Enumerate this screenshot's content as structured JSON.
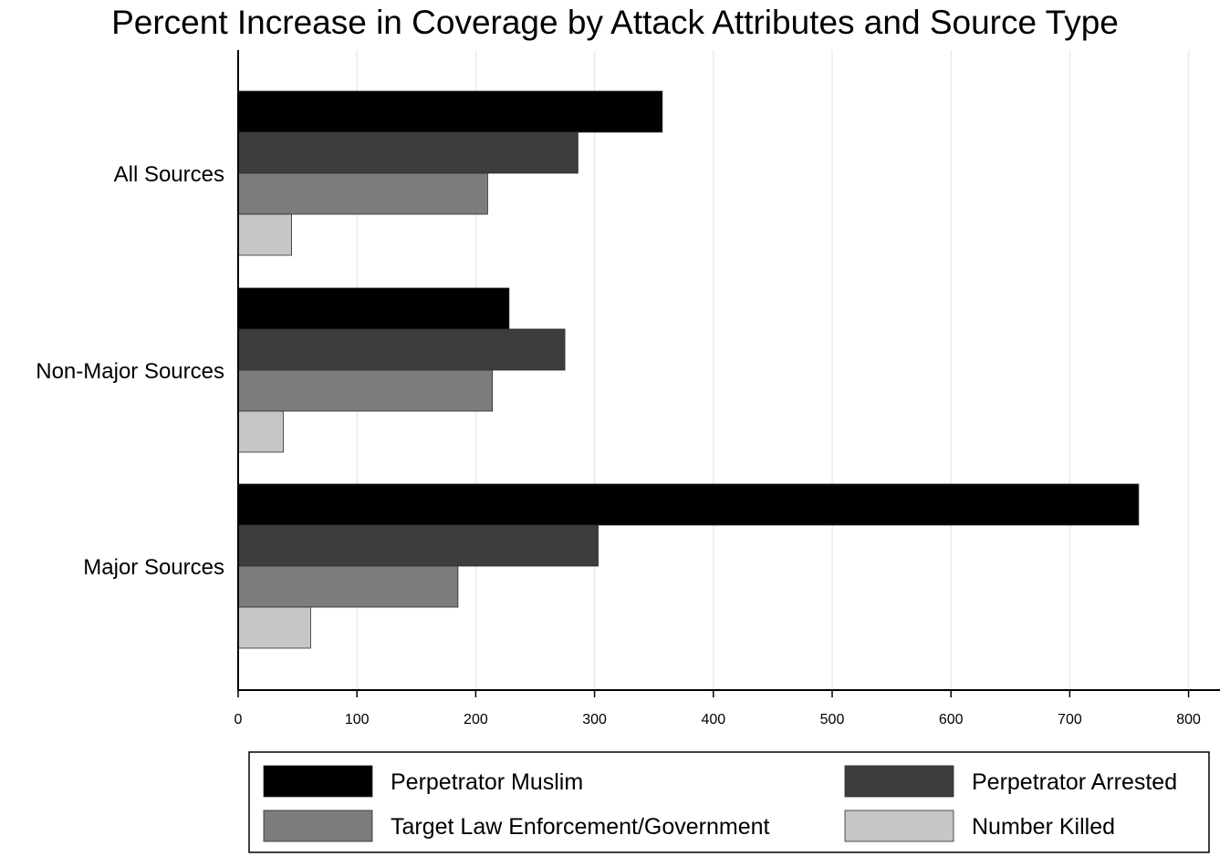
{
  "chart_data": {
    "type": "bar",
    "orientation": "horizontal",
    "title": "Percent Increase in Coverage by Attack Attributes and Source Type",
    "categories": [
      "All Sources",
      "Non-Major Sources",
      "Major Sources"
    ],
    "series": [
      {
        "name": "Perpetrator Muslim",
        "color": "#000000",
        "values": [
          357,
          228,
          758
        ]
      },
      {
        "name": "Perpetrator Arrested",
        "color": "#3d3d3d",
        "values": [
          286,
          275,
          303
        ]
      },
      {
        "name": "Target Law Enforcement/Government",
        "color": "#7c7c7c",
        "values": [
          210,
          214,
          185
        ]
      },
      {
        "name": "Number Killed",
        "color": "#c6c6c6",
        "values": [
          45,
          38,
          61
        ]
      }
    ],
    "x_ticks": [
      "0",
      "100",
      "200",
      "300",
      "400",
      "500",
      "600",
      "700",
      "800"
    ],
    "xlim": [
      0,
      825
    ],
    "xlabel": "",
    "ylabel": "",
    "grid": "vertical",
    "legend_position": "bottom"
  }
}
